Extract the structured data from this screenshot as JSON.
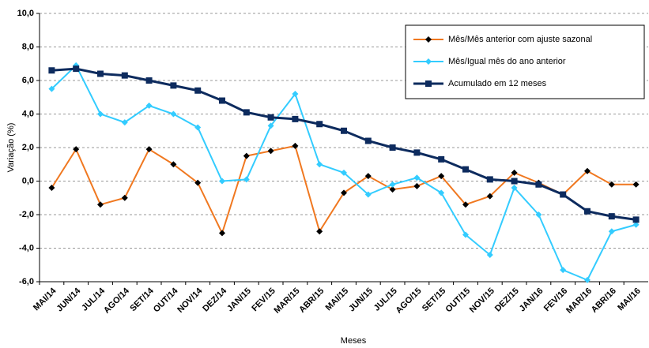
{
  "chart_data": {
    "type": "line",
    "y_label": "Variação (%)",
    "x_label": "Meses",
    "categories": [
      "MAI/14",
      "JUN/14",
      "JUL/14",
      "AGO/14",
      "SET/14",
      "OUT/14",
      "NOV/14",
      "DEZ/14",
      "JAN/15",
      "FEV/15",
      "MAR/15",
      "ABR/15",
      "MAI/15",
      "JUN/15",
      "JUL/15",
      "AGO/15",
      "SET/15",
      "OUT/15",
      "NOV/15",
      "DEZ/15",
      "JAN/16",
      "FEV/16",
      "MAR/16",
      "ABR/16",
      "MAI/16"
    ],
    "series": [
      {
        "name": "Mês/Mês anterior com ajuste sazonal",
        "color": "#f07820",
        "marker": "diamond",
        "marker_color": "#000000",
        "values": [
          -0.4,
          1.9,
          -1.4,
          -1.0,
          1.9,
          1.0,
          -0.1,
          -3.1,
          1.5,
          1.8,
          2.1,
          -3.0,
          -0.7,
          0.3,
          -0.5,
          -0.3,
          0.3,
          -1.4,
          -0.9,
          0.5,
          -0.1,
          -0.8,
          0.6,
          -0.2,
          -0.2
        ]
      },
      {
        "name": "Mês/Igual mês do ano anterior",
        "color": "#33ccff",
        "marker": "diamond",
        "marker_color": "#33ccff",
        "values": [
          5.5,
          6.9,
          4.0,
          3.5,
          4.5,
          4.0,
          3.2,
          0.0,
          0.1,
          3.3,
          5.2,
          1.0,
          0.5,
          -0.8,
          -0.2,
          0.2,
          -0.7,
          -3.2,
          -4.4,
          -0.4,
          -2.0,
          -5.3,
          -5.9,
          -3.0,
          -2.6
        ]
      },
      {
        "name": "Acumulado em 12 meses",
        "color": "#0d2b5e",
        "marker": "square",
        "marker_color": "#0d2b5e",
        "values": [
          6.6,
          6.7,
          6.4,
          6.3,
          6.0,
          5.7,
          5.4,
          4.8,
          4.1,
          3.8,
          3.7,
          3.4,
          3.0,
          2.4,
          2.0,
          1.7,
          1.3,
          0.7,
          0.1,
          0.0,
          -0.2,
          -0.8,
          -1.8,
          -2.1,
          -2.3
        ]
      }
    ],
    "ylim": [
      -6,
      10
    ],
    "yticks": [
      {
        "value": -6,
        "label": "-6,0"
      },
      {
        "value": -4,
        "label": "-4,0"
      },
      {
        "value": -2,
        "label": "-2,0"
      },
      {
        "value": 0,
        "label": "0,0"
      },
      {
        "value": 2,
        "label": "2,0"
      },
      {
        "value": 4,
        "label": "4,0"
      },
      {
        "value": 6,
        "label": "6,0"
      },
      {
        "value": 8,
        "label": "8,0"
      },
      {
        "value": 10,
        "label": "10,0"
      }
    ],
    "grid": true,
    "legend": "top-right"
  }
}
